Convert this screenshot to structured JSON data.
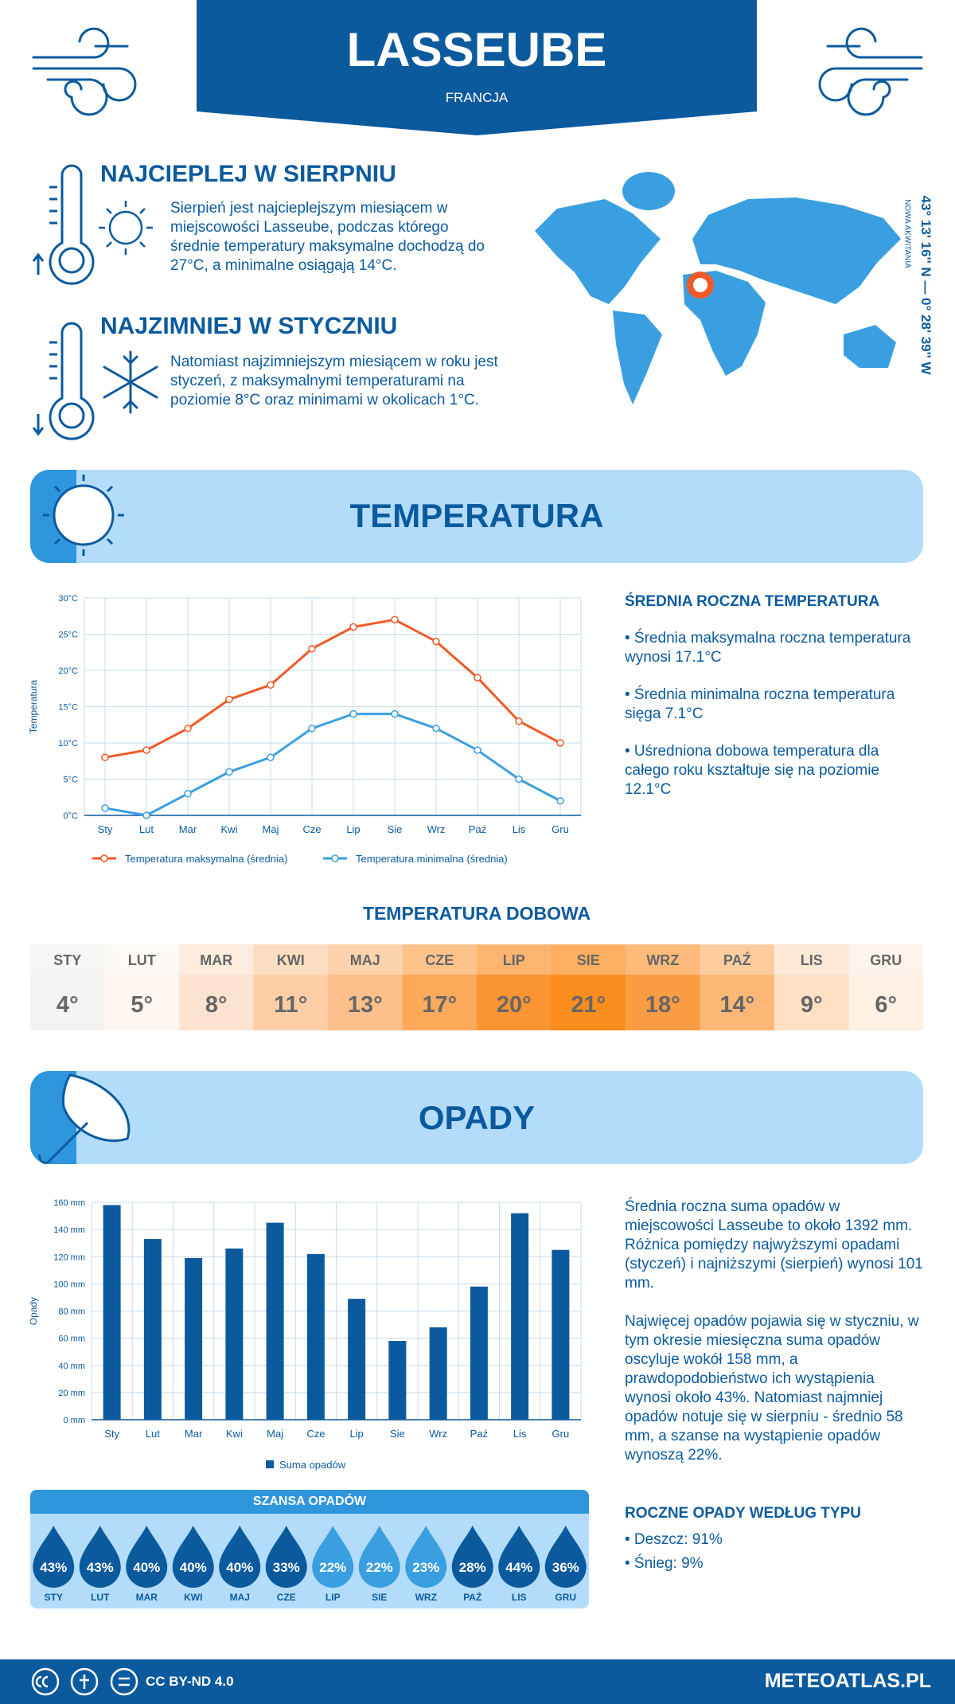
{
  "header": {
    "title": "LASSEUBE",
    "subtitle": "FRANCJA"
  },
  "highlights": [
    {
      "title": "NAJCIEPLEJ W SIERPNIU",
      "text": "Sierpień jest najcieplejszym miesiącem w miejscowości Lasseube, podczas którego średnie temperatury maksymalne dochodzą do 27°C, a minimalne osiągają 14°C."
    },
    {
      "title": "NAJZIMNIEJ W STYCZNIU",
      "text": "Natomiast najzimniejszym miesiącem w roku jest styczeń, z maksymalnymi temperaturami na poziomie 8°C oraz minimami w okolicach 1°C."
    }
  ],
  "location": {
    "coordinates": "43° 13' 16'' N — 0° 28' 39'' W",
    "region": "NOWA AKWITANIA"
  },
  "temperature_section": {
    "title": "TEMPERATURA",
    "summary_title": "ŚREDNIA ROCZNA TEMPERATURA",
    "summary": [
      "• Średnia maksymalna roczna temperatura wynosi 17.1°C",
      "• Średnia minimalna roczna temperatura sięga 7.1°C",
      "• Uśredniona dobowa temperatura dla całego roku kształtuje się na poziomie 12.1°C"
    ]
  },
  "chart_data": [
    {
      "type": "line",
      "y_label": "Temperatura",
      "categories": [
        "Sty",
        "Lut",
        "Mar",
        "Kwi",
        "Maj",
        "Cze",
        "Lip",
        "Sie",
        "Wrz",
        "Paź",
        "Lis",
        "Gru"
      ],
      "series": [
        {
          "name": "Temperatura maksymalna (średnia)",
          "color": "#f05a28",
          "values": [
            8,
            9,
            12,
            16,
            18,
            23,
            26,
            27,
            24,
            19,
            13,
            10
          ]
        },
        {
          "name": "Temperatura minimalna (średnia)",
          "color": "#3a9fe0",
          "values": [
            1,
            0,
            3,
            6,
            8,
            12,
            14,
            14,
            12,
            9,
            5,
            2
          ]
        }
      ],
      "ylim": [
        0,
        30
      ],
      "yticks": [
        {
          "value": 0,
          "label": "0°C"
        },
        {
          "value": 5,
          "label": "5°C"
        },
        {
          "value": 10,
          "label": "10°C"
        },
        {
          "value": 15,
          "label": "15°C"
        },
        {
          "value": 20,
          "label": "20°C"
        },
        {
          "value": 25,
          "label": "25°C"
        },
        {
          "value": 30,
          "label": "30°C"
        }
      ],
      "grid": true
    },
    {
      "type": "bar",
      "y_label": "Opady",
      "categories": [
        "Sty",
        "Lut",
        "Mar",
        "Kwi",
        "Maj",
        "Cze",
        "Lip",
        "Sie",
        "Wrz",
        "Paź",
        "Lis",
        "Gru"
      ],
      "series": [
        {
          "name": "Suma opadów",
          "color": "#0b5a9e",
          "values": [
            158,
            133,
            119,
            126,
            145,
            122,
            89,
            58,
            68,
            98,
            152,
            125
          ]
        }
      ],
      "ylim": [
        0,
        160
      ],
      "yticks": [
        {
          "value": 0,
          "label": "0 mm"
        },
        {
          "value": 20,
          "label": "20 mm"
        },
        {
          "value": 40,
          "label": "40 mm"
        },
        {
          "value": 60,
          "label": "60 mm"
        },
        {
          "value": 80,
          "label": "80 mm"
        },
        {
          "value": 100,
          "label": "100 mm"
        },
        {
          "value": 120,
          "label": "120 mm"
        },
        {
          "value": 140,
          "label": "140 mm"
        },
        {
          "value": 160,
          "label": "160 mm"
        }
      ],
      "grid": true
    }
  ],
  "daily_temperature": {
    "title": "TEMPERATURA DOBOWA",
    "months": [
      "STY",
      "LUT",
      "MAR",
      "KWI",
      "MAJ",
      "CZE",
      "LIP",
      "SIE",
      "WRZ",
      "PAŹ",
      "LIS",
      "GRU"
    ],
    "values": [
      "4°",
      "5°",
      "8°",
      "11°",
      "13°",
      "17°",
      "20°",
      "21°",
      "18°",
      "14°",
      "9°",
      "6°"
    ],
    "colors": [
      "#f3f3f3",
      "#fdf6f1",
      "#fde3cf",
      "#fdcea6",
      "#fdc08c",
      "#fca95a",
      "#fb9432",
      "#fb8c1e",
      "#fc9c42",
      "#fdb877",
      "#fee0c5",
      "#fff0e4"
    ]
  },
  "precipitation_section": {
    "title": "OPADY",
    "summary": [
      "Średnia roczna suma opadów w miejscowości Lasseube to około 1392 mm. Różnica pomiędzy najwyższymi opadami (styczeń) i najniższymi (sierpień) wynosi 101 mm.",
      "Najwięcej opadów pojawia się w styczniu, w tym okresie miesięczna suma opadów oscyluje wokół 158 mm, a prawdopodobieństwo ich wystąpienia wynosi około 43%. Natomiast najmniej opadów notuje się w sierpniu - średnio 58 mm, a szanse na wystąpienie opadów wynoszą 22%."
    ],
    "type_title": "ROCZNE OPADY WEDŁUG TYPU",
    "types": [
      "• Deszcz: 91%",
      "• Śnieg: 9%"
    ]
  },
  "precipitation_chance": {
    "title": "SZANSA OPADÓW",
    "months": [
      "STY",
      "LUT",
      "MAR",
      "KWI",
      "MAJ",
      "CZE",
      "LIP",
      "SIE",
      "WRZ",
      "PAŹ",
      "LIS",
      "GRU"
    ],
    "values": [
      "43%",
      "43%",
      "40%",
      "40%",
      "40%",
      "33%",
      "22%",
      "22%",
      "23%",
      "28%",
      "44%",
      "36%"
    ],
    "colors": [
      "#0b5a9e",
      "#0b5a9e",
      "#0b5a9e",
      "#0b5a9e",
      "#0b5a9e",
      "#0b5a9e",
      "#3a9fe0",
      "#3a9fe0",
      "#3a9fe0",
      "#0b5a9e",
      "#0b5a9e",
      "#0b5a9e"
    ]
  },
  "footer": {
    "license": "CC BY-ND 4.0",
    "site": "METEOATLAS.PL"
  }
}
